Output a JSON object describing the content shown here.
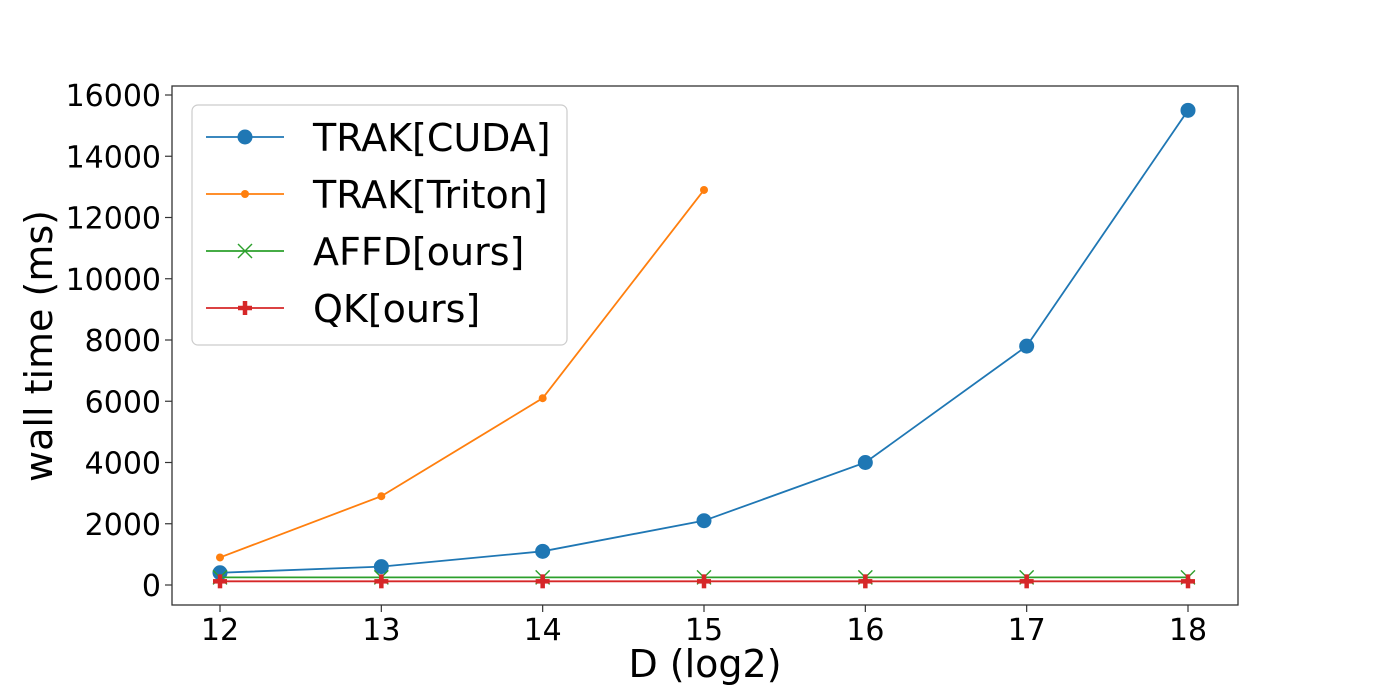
{
  "chart_data": {
    "type": "line",
    "title": "",
    "xlabel": "D (log2)",
    "ylabel": "wall time (ms)",
    "x": [
      12,
      13,
      14,
      15,
      16,
      17,
      18
    ],
    "xticks": [
      "12",
      "13",
      "14",
      "15",
      "16",
      "17",
      "18"
    ],
    "yticks": [
      "0",
      "2000",
      "4000",
      "6000",
      "8000",
      "10000",
      "12000",
      "14000",
      "16000"
    ],
    "xlim": [
      11.7,
      18.3
    ],
    "ylim": [
      -650,
      16300
    ],
    "grid": false,
    "legend_position": "upper left",
    "series": [
      {
        "name": "TRAK[CUDA]",
        "color": "#1f77b4",
        "marker": "circle-large",
        "x": [
          12,
          13,
          14,
          15,
          16,
          17,
          18
        ],
        "values": [
          400,
          600,
          1100,
          2100,
          4000,
          7800,
          15500
        ]
      },
      {
        "name": "TRAK[Triton]",
        "color": "#ff7f0e",
        "marker": "circle-small",
        "x": [
          12,
          13,
          14,
          15
        ],
        "values": [
          900,
          2900,
          6100,
          12900
        ]
      },
      {
        "name": "AFFD[ours]",
        "color": "#2ca02c",
        "marker": "x",
        "x": [
          12,
          13,
          14,
          15,
          16,
          17,
          18
        ],
        "values": [
          250,
          250,
          250,
          250,
          250,
          250,
          250
        ]
      },
      {
        "name": "QK[ours]",
        "color": "#d62728",
        "marker": "plus",
        "x": [
          12,
          13,
          14,
          15,
          16,
          17,
          18
        ],
        "values": [
          120,
          120,
          120,
          120,
          120,
          120,
          120
        ]
      }
    ]
  }
}
